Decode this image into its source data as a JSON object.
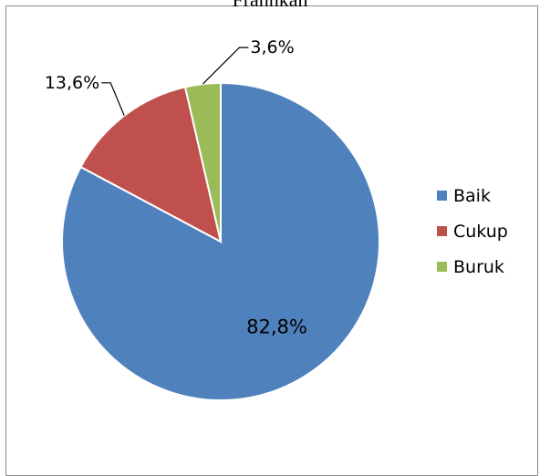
{
  "chart_data": {
    "type": "pie",
    "title": "Frannkan",
    "categories": [
      "Baik",
      "Cukup",
      "Buruk"
    ],
    "values": [
      82.8,
      13.6,
      3.6
    ],
    "data_labels": [
      "82,8%",
      "13,6%",
      "3,6%"
    ],
    "colors": [
      "#4f81bd",
      "#c0504d",
      "#9bbb59"
    ],
    "legend_position": "right",
    "start_angle": "12 o'clock, clockwise"
  }
}
